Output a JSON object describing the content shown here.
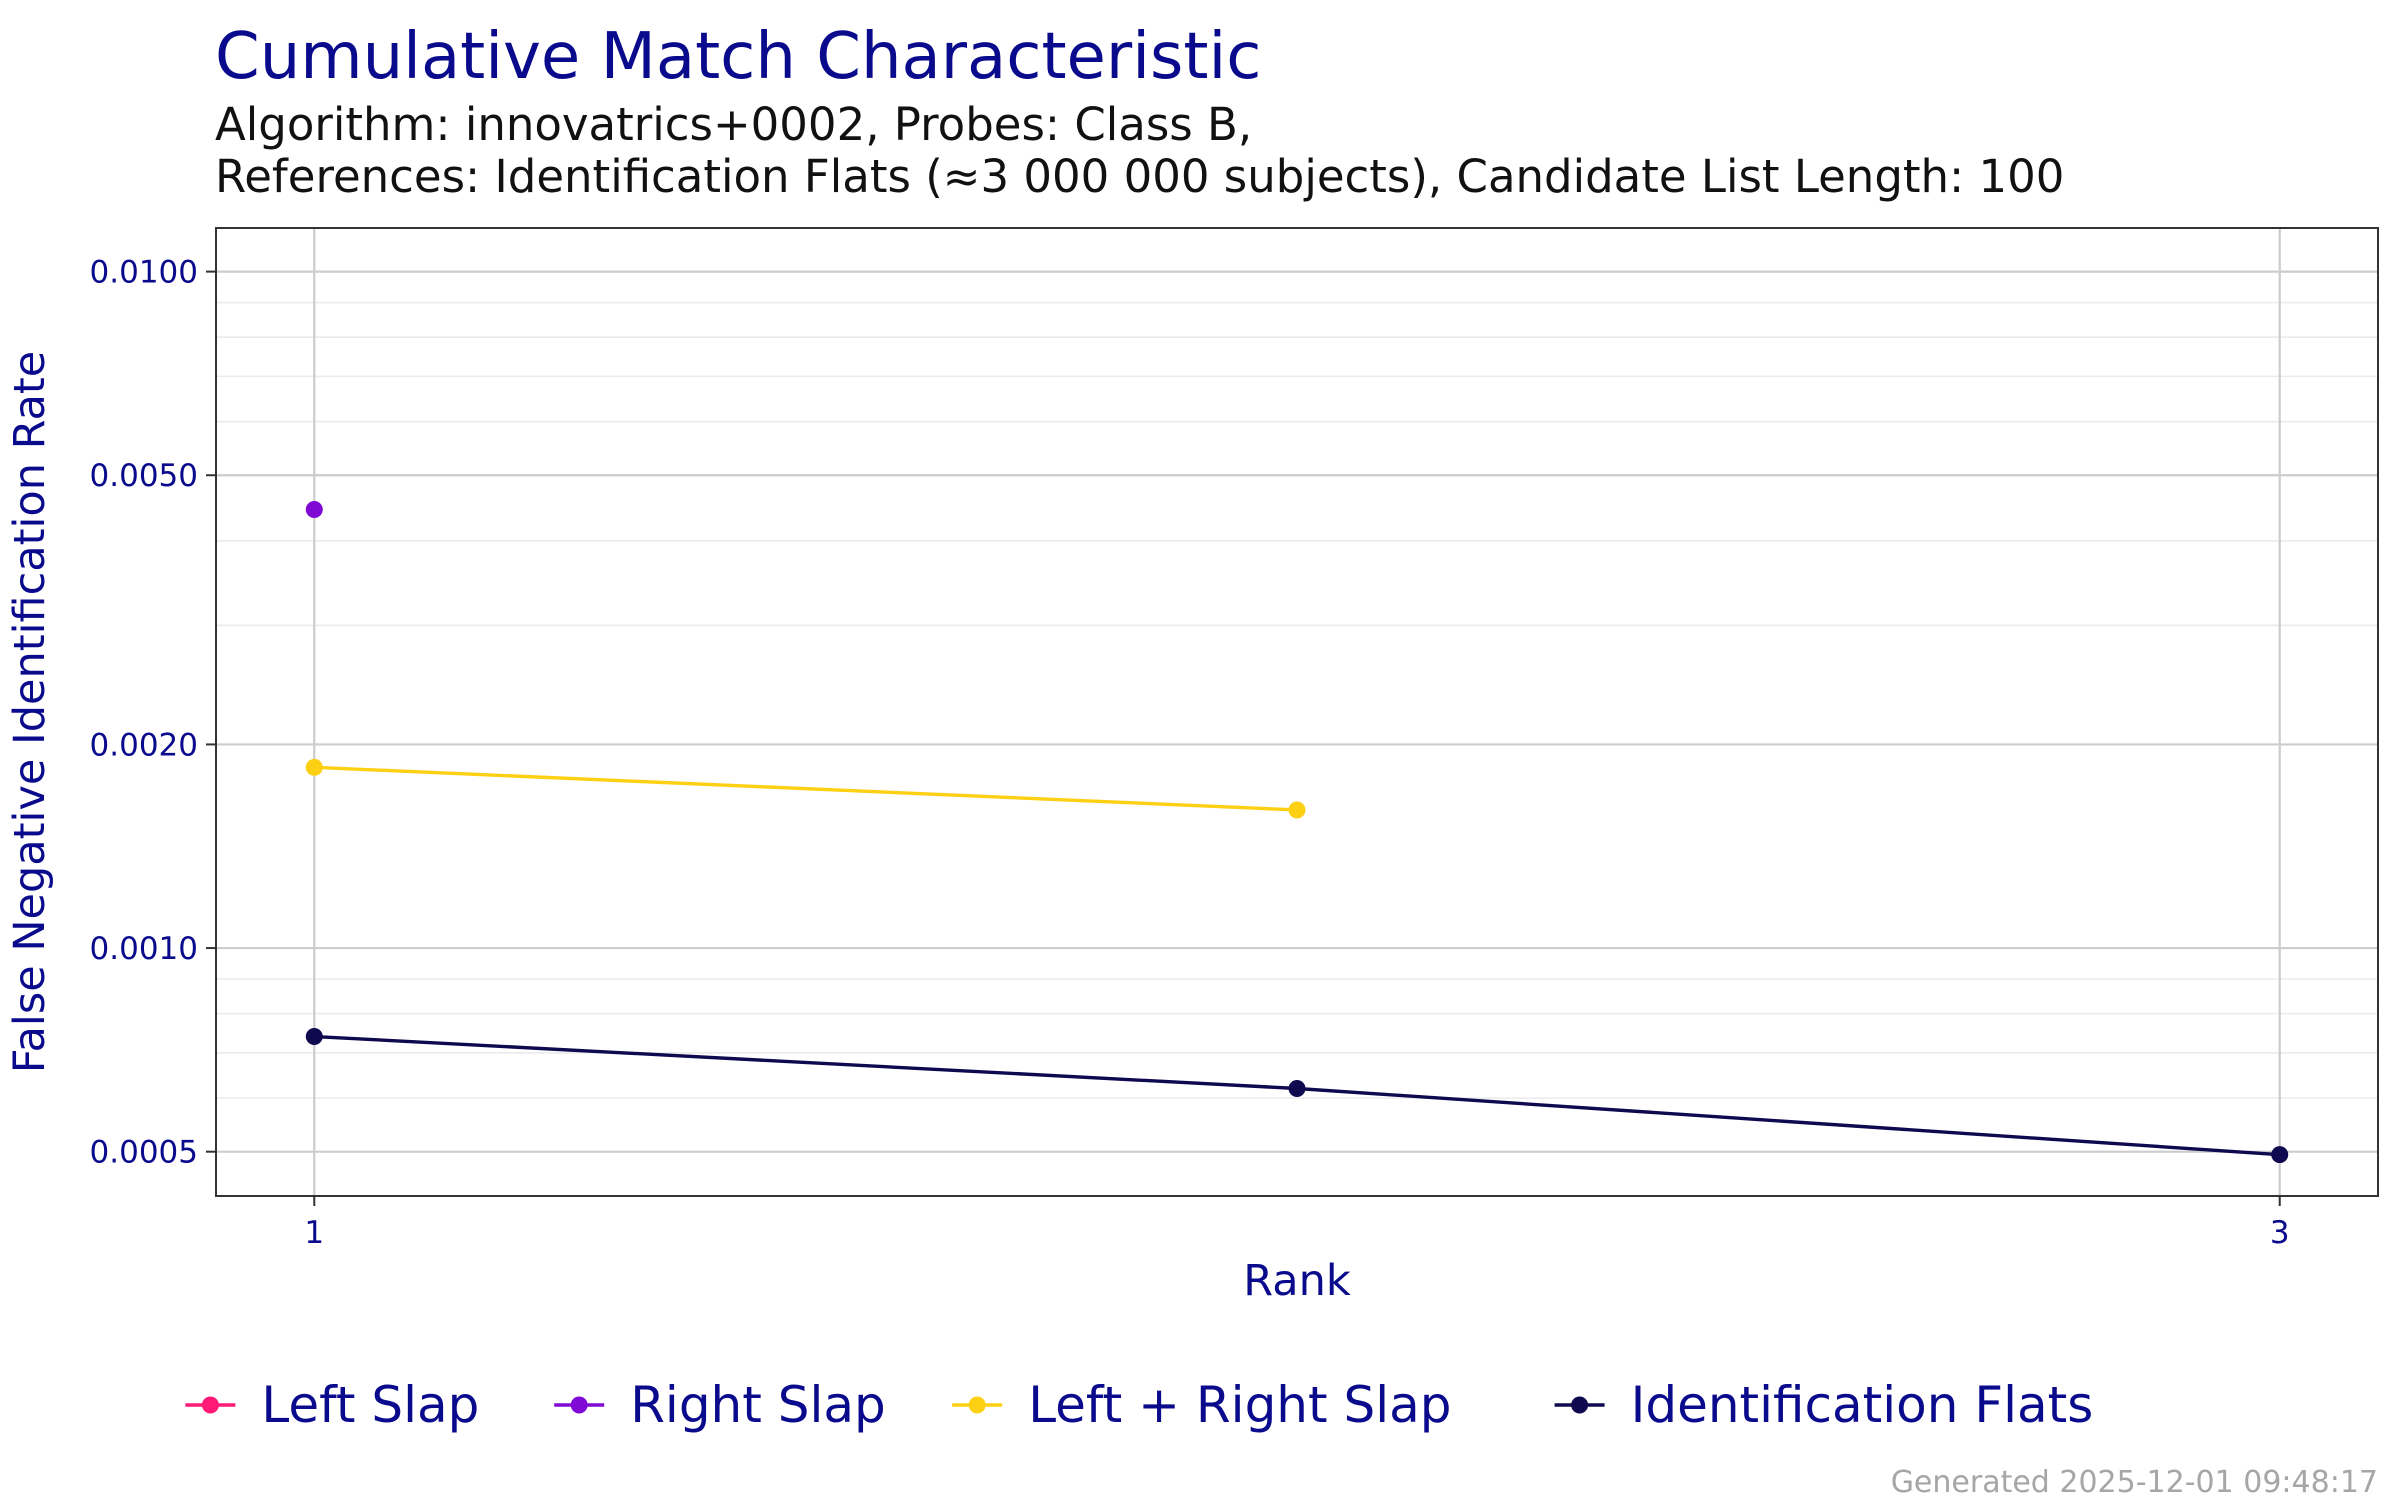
{
  "chart_data": {
    "type": "line",
    "title": "Cumulative Match Characteristic",
    "subtitle_lines": [
      "Algorithm: innovatrics+0002, Probes: Class B,",
      "References: Identification Flats (≈3 000 000 subjects), Candidate List Length: 100"
    ],
    "xlabel": "Rank",
    "ylabel": "False Negative Identification Rate",
    "x_ticks": [
      1,
      3
    ],
    "x_tick_labels": [
      "1",
      "3"
    ],
    "xlim": [
      0.9,
      3.1
    ],
    "y_scale": "log",
    "ylim": [
      0.00043,
      0.0116
    ],
    "y_ticks": [
      0.0005,
      0.001,
      0.002,
      0.005,
      0.01
    ],
    "y_tick_labels": [
      "0.0005",
      "0.0010",
      "0.0020",
      "0.0050",
      "0.0100"
    ],
    "grid": true,
    "legend_position": "bottom",
    "series": [
      {
        "name": "Left Slap",
        "color": "#ff1a75",
        "x": [],
        "y": []
      },
      {
        "name": "Right Slap",
        "color": "#7f0ad6",
        "x": [
          1
        ],
        "y": [
          0.00445
        ]
      },
      {
        "name": "Left + Right Slap",
        "color": "#fdd014",
        "x": [
          1,
          2
        ],
        "y": [
          0.00185,
          0.0016
        ]
      },
      {
        "name": "Identification Flats",
        "color": "#0f0a4f",
        "x": [
          1,
          2,
          3
        ],
        "y": [
          0.00074,
          0.00062,
          0.000495
        ]
      }
    ],
    "caption": "Generated 2025-12-01 09:48:17"
  }
}
